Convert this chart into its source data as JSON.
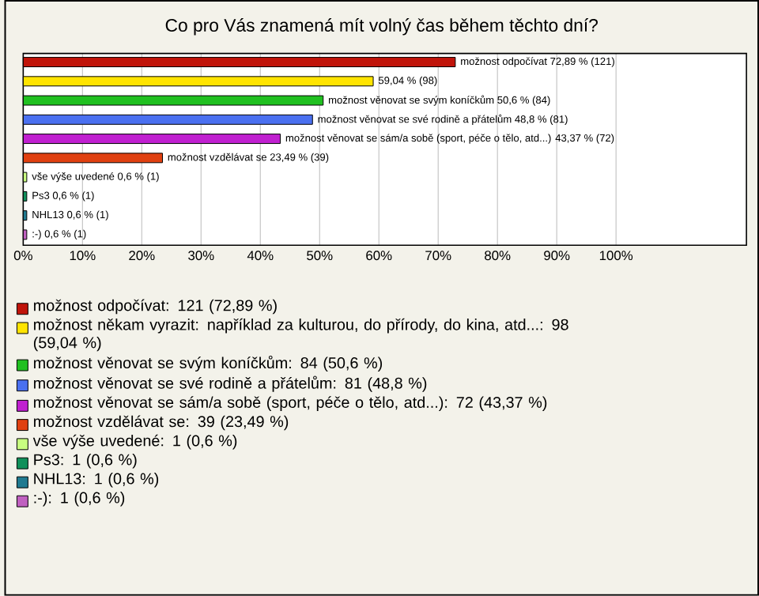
{
  "chart_data": {
    "type": "bar",
    "orientation": "horizontal",
    "title": "Co pro Vás znamená mít volný čas během těchto dní?",
    "categories": [
      null,
      null,
      null,
      null,
      null,
      null,
      null,
      null,
      null,
      null
    ],
    "series": [
      {
        "name": "možnost odpočívat: 121 (72,89 %)",
        "color": "#c0140a",
        "values": [
          72.89,
          null,
          null,
          null,
          null,
          null,
          null,
          null,
          null,
          null
        ],
        "value_labels": [
          "možnost odpočívat 72,89 % (121)",
          null,
          null,
          null,
          null,
          null,
          null,
          null,
          null,
          null
        ]
      },
      {
        "name": "možnost někam vyrazit: například za kulturou, do přírody, do kina, atd...: 98 (59,04 %)",
        "color": "#ffe400",
        "values": [
          null,
          59.04,
          null,
          null,
          null,
          null,
          null,
          null,
          null,
          null
        ],
        "value_labels": [
          null,
          "59,04 % (98)",
          null,
          null,
          null,
          null,
          null,
          null,
          null,
          null
        ]
      },
      {
        "name": "možnost věnovat se svým koníčkům: 84 (50,6 %)",
        "color": "#20c020",
        "values": [
          null,
          null,
          50.6,
          null,
          null,
          null,
          null,
          null,
          null,
          null
        ],
        "value_labels": [
          null,
          null,
          "možnost věnovat se svým koníčkům 50,6 % (84)",
          null,
          null,
          null,
          null,
          null,
          null,
          null
        ]
      },
      {
        "name": "možnost věnovat se své rodině a přátelům: 81 (48,8 %)",
        "color": "#4a70f0",
        "values": [
          null,
          null,
          null,
          48.8,
          null,
          null,
          null,
          null,
          null,
          null
        ],
        "value_labels": [
          null,
          null,
          null,
          "možnost věnovat se své rodině a přátelům 48,8 % (81)",
          null,
          null,
          null,
          null,
          null,
          null
        ]
      },
      {
        "name": "možnost věnovat se sám/a sobě (sport, péče o tělo, atd...): 72 (43,37 %)",
        "color": "#c020d0",
        "values": [
          null,
          null,
          null,
          null,
          43.37,
          null,
          null,
          null,
          null,
          null
        ],
        "value_labels": [
          null,
          null,
          null,
          null,
          "možnost věnovat se sám/a sobě (sport, péče o tělo, atd...) 43,37 % (72)",
          null,
          null,
          null,
          null,
          null
        ]
      },
      {
        "name": "možnost vzdělávat se: 39 (23,49 %)",
        "color": "#e04010",
        "values": [
          null,
          null,
          null,
          null,
          null,
          23.49,
          null,
          null,
          null,
          null
        ],
        "value_labels": [
          null,
          null,
          null,
          null,
          null,
          "možnost vzdělávat se 23,49 % (39)",
          null,
          null,
          null,
          null
        ]
      },
      {
        "name": "vše výše uvedené: 1 (0,6 %)",
        "color": "#c8ff80",
        "values": [
          null,
          null,
          null,
          null,
          null,
          null,
          0.6,
          null,
          null,
          null
        ],
        "value_labels": [
          null,
          null,
          null,
          null,
          null,
          null,
          "vše výše uvedené 0,6 % (1)",
          null,
          null,
          null
        ]
      },
      {
        "name": "Ps3: 1 (0,6 %)",
        "color": "#10905a",
        "values": [
          null,
          null,
          null,
          null,
          null,
          null,
          null,
          0.6,
          null,
          null
        ],
        "value_labels": [
          null,
          null,
          null,
          null,
          null,
          null,
          null,
          "Ps3 0,6 % (1)",
          null,
          null
        ]
      },
      {
        "name": "NHL13: 1 (0,6 %)",
        "color": "#207a90",
        "values": [
          null,
          null,
          null,
          null,
          null,
          null,
          null,
          null,
          0.6,
          null
        ],
        "value_labels": [
          null,
          null,
          null,
          null,
          null,
          null,
          null,
          null,
          "NHL13 0,6 % (1)",
          null
        ]
      },
      {
        "name": ":-): 1 (0,6 %)",
        "color": "#c060c0",
        "values": [
          null,
          null,
          null,
          null,
          null,
          null,
          null,
          null,
          null,
          0.6
        ],
        "value_labels": [
          null,
          null,
          null,
          null,
          null,
          null,
          null,
          null,
          null,
          ":-) 0,6 % (1)"
        ]
      }
    ],
    "xlim": [
      0,
      122
    ],
    "xticks": [
      {
        "value": 0,
        "label": "0%"
      },
      {
        "value": 10,
        "label": "10%"
      },
      {
        "value": 20,
        "label": "20%"
      },
      {
        "value": 30,
        "label": "30%"
      },
      {
        "value": 40,
        "label": "40%"
      },
      {
        "value": 50,
        "label": "50%"
      },
      {
        "value": 60,
        "label": "60%"
      },
      {
        "value": 70,
        "label": "70%"
      },
      {
        "value": 80,
        "label": "80%"
      },
      {
        "value": 90,
        "label": "90%"
      },
      {
        "value": 100,
        "label": "100%"
      }
    ],
    "grid": "x",
    "legend": "bottom",
    "tick_labels": "x"
  }
}
